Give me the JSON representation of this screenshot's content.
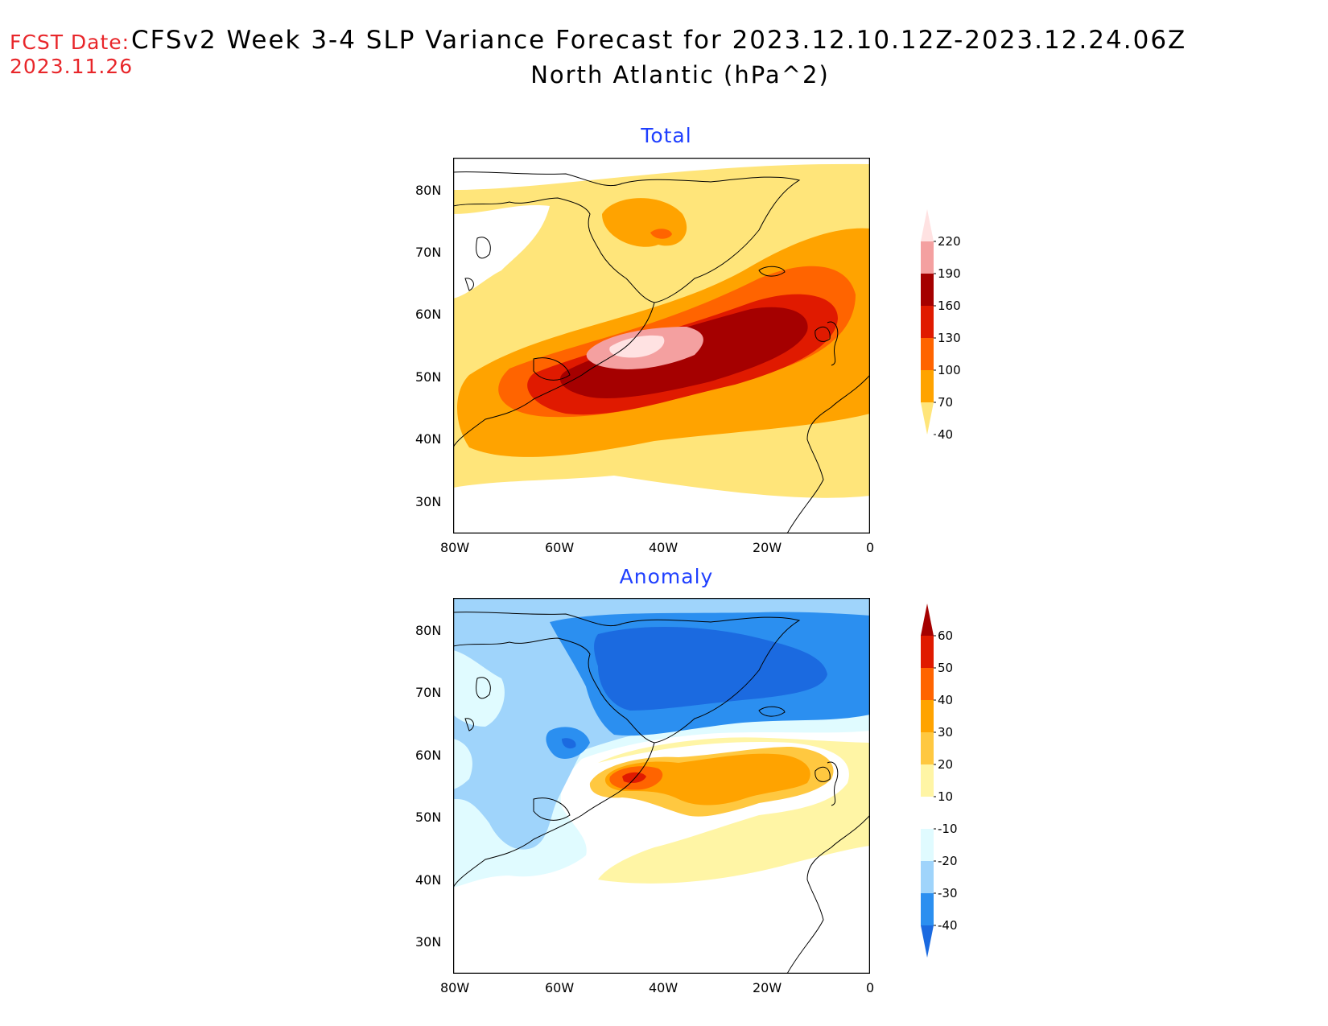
{
  "header": {
    "fcst_label": "FCST Date:",
    "fcst_date": "2023.11.26",
    "title": "CFSv2 Week 3-4 SLP Variance Forecast for 2023.12.10.12Z-2023.12.24.06Z",
    "subtitle": "North Atlantic (hPa^2)"
  },
  "axes": {
    "lat_labels": [
      "80N",
      "70N",
      "60N",
      "50N",
      "40N",
      "30N"
    ],
    "lon_labels": [
      "80W",
      "60W",
      "40W",
      "20W",
      "0"
    ]
  },
  "panels": [
    {
      "title": "Total",
      "colorbar": {
        "labels": [
          "220",
          "190",
          "160",
          "130",
          "100",
          "70",
          "40"
        ],
        "colors": [
          "#ffe2e2",
          "#f4a0a0",
          "#a50000",
          "#e01a00",
          "#ff6400",
          "#ffa300",
          "#ffe57a"
        ]
      }
    },
    {
      "title": "Anomaly",
      "colorbar": {
        "labels": [
          "60",
          "50",
          "40",
          "30",
          "20",
          "10",
          "-10",
          "-20",
          "-30",
          "-40"
        ],
        "colors": [
          "#a50000",
          "#e01a00",
          "#ff6400",
          "#ffa300",
          "#ffc840",
          "#fff5a5",
          "#ffffff",
          "#e0fbff",
          "#9fd4fb",
          "#2b8ff0",
          "#1b6ae0"
        ]
      }
    }
  ]
}
